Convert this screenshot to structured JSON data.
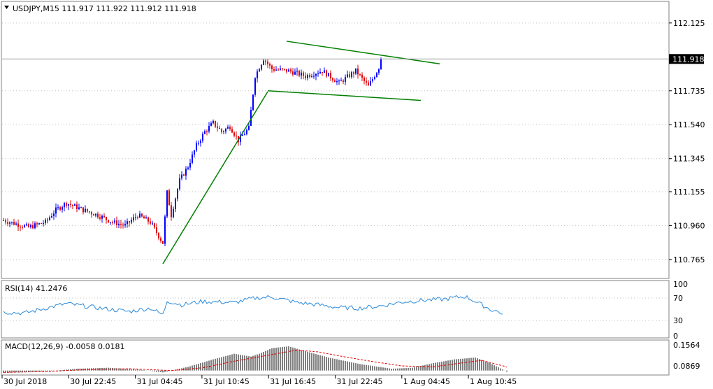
{
  "colors": {
    "bull": "#0000ff",
    "bear": "#e00000",
    "trend": "#008000",
    "rsi": "#2b8ad8",
    "macd_hist": "#000000",
    "macd_signal": "#e00000",
    "current_price_bg": "#000000",
    "current_price_text": "#ffffff"
  },
  "main_chart": {
    "header": "USDJPY,M15  111.917 111.922 111.912 111.918",
    "chart_data": {
      "type": "candlestick",
      "symbol": "USDJPY",
      "timeframe": "M15",
      "ohlc": {
        "open": 111.917,
        "high": 111.922,
        "low": 111.912,
        "close": 111.918
      },
      "current_price": 111.918,
      "current_price_label": "111.918",
      "ylim": [
        110.66,
        112.245
      ],
      "y_ticks": [
        "112.125",
        "111.735",
        "111.540",
        "111.345",
        "111.155",
        "110.960",
        "110.765"
      ],
      "y_tick_values": [
        112.125,
        111.735,
        111.54,
        111.345,
        111.155,
        110.96,
        110.765
      ],
      "x_tick_labels": [
        "30 Jul 2018",
        "30 Jul 22:45",
        "31 Jul 04:45",
        "31 Jul 10:45",
        "31 Jul 16:45",
        "31 Jul 22:45",
        "1 Aug 04:45",
        "1 Aug 10:45"
      ],
      "bar_count": 180,
      "anchor_closes": [
        [
          0,
          110.99
        ],
        [
          12,
          110.95
        ],
        [
          20,
          110.98
        ],
        [
          25,
          111.05
        ],
        [
          30,
          111.09
        ],
        [
          38,
          111.05
        ],
        [
          45,
          111.02
        ],
        [
          52,
          110.98
        ],
        [
          58,
          110.96
        ],
        [
          64,
          111.02
        ],
        [
          70,
          110.98
        ],
        [
          76,
          110.86
        ],
        [
          78,
          111.15
        ],
        [
          80,
          111.02
        ],
        [
          84,
          111.22
        ],
        [
          88,
          111.3
        ],
        [
          92,
          111.42
        ],
        [
          96,
          111.5
        ],
        [
          100,
          111.55
        ],
        [
          104,
          111.5
        ],
        [
          108,
          111.53
        ],
        [
          112,
          111.45
        ],
        [
          117,
          111.52
        ],
        [
          120,
          111.82
        ],
        [
          124,
          111.92
        ],
        [
          128,
          111.86
        ],
        [
          136,
          111.85
        ],
        [
          144,
          111.82
        ],
        [
          152,
          111.85
        ],
        [
          160,
          111.78
        ],
        [
          168,
          111.85
        ],
        [
          174,
          111.76
        ],
        [
          180,
          111.89
        ]
      ],
      "trendlines": [
        {
          "name": "impulse-line",
          "points": [
            [
              76,
              110.74
            ],
            [
              126,
              111.73
            ]
          ]
        },
        {
          "name": "flag-upper-line",
          "points": [
            [
              135,
              112.02
            ],
            [
              208,
              111.89
            ]
          ]
        },
        {
          "name": "flag-lower-line",
          "points": [
            [
              126,
              111.735
            ],
            [
              199,
              111.68
            ]
          ]
        }
      ],
      "grid": true
    }
  },
  "rsi_panel": {
    "header": "RSI(14) 41.2476",
    "chart_data": {
      "type": "line",
      "name": "RSI(14)",
      "current_value": 41.2476,
      "ylim": [
        0,
        100
      ],
      "y_ticks": [
        "100",
        "70",
        "30",
        "0"
      ],
      "y_tick_values": [
        100,
        70,
        30,
        0
      ],
      "levels": [
        70,
        30
      ],
      "anchor_values": [
        [
          0,
          45
        ],
        [
          10,
          43
        ],
        [
          20,
          52
        ],
        [
          30,
          60
        ],
        [
          40,
          55
        ],
        [
          50,
          50
        ],
        [
          60,
          46
        ],
        [
          70,
          52
        ],
        [
          76,
          40
        ],
        [
          78,
          65
        ],
        [
          85,
          58
        ],
        [
          95,
          64
        ],
        [
          110,
          62
        ],
        [
          120,
          70
        ],
        [
          128,
          72
        ],
        [
          140,
          62
        ],
        [
          150,
          58
        ],
        [
          160,
          53
        ],
        [
          170,
          52
        ],
        [
          180,
          56
        ],
        [
          190,
          63
        ],
        [
          200,
          66
        ],
        [
          210,
          68
        ],
        [
          220,
          73
        ],
        [
          225,
          64
        ],
        [
          232,
          50
        ],
        [
          238,
          43
        ]
      ]
    }
  },
  "macd_panel": {
    "header": "MACD(12,26,9) -0.0058 0.0181",
    "chart_data": {
      "type": "bar",
      "name": "MACD(12,26,9)",
      "main_value": -0.0058,
      "signal_value": 0.0181,
      "ylim": [
        -0.02,
        0.16
      ],
      "y_ticks": [
        "0.1564",
        "0.0869"
      ],
      "y_tick_values": [
        0.1564,
        0.0869
      ],
      "anchor_macd": [
        [
          0,
          -0.012
        ],
        [
          20,
          -0.005
        ],
        [
          35,
          0.01
        ],
        [
          50,
          0.015
        ],
        [
          65,
          0.005
        ],
        [
          76,
          -0.01
        ],
        [
          88,
          0.02
        ],
        [
          100,
          0.06
        ],
        [
          110,
          0.09
        ],
        [
          118,
          0.075
        ],
        [
          122,
          0.09
        ],
        [
          128,
          0.12
        ],
        [
          136,
          0.13
        ],
        [
          142,
          0.11
        ],
        [
          155,
          0.07
        ],
        [
          170,
          0.035
        ],
        [
          185,
          0.01
        ],
        [
          195,
          0.015
        ],
        [
          205,
          0.04
        ],
        [
          215,
          0.06
        ],
        [
          225,
          0.07
        ],
        [
          232,
          0.04
        ],
        [
          240,
          -0.005
        ]
      ],
      "anchor_signal": [
        [
          0,
          -0.01
        ],
        [
          20,
          -0.005
        ],
        [
          40,
          0.005
        ],
        [
          60,
          0.01
        ],
        [
          80,
          0.0
        ],
        [
          95,
          0.015
        ],
        [
          110,
          0.05
        ],
        [
          120,
          0.07
        ],
        [
          130,
          0.09
        ],
        [
          140,
          0.11
        ],
        [
          150,
          0.1
        ],
        [
          162,
          0.075
        ],
        [
          175,
          0.05
        ],
        [
          190,
          0.025
        ],
        [
          205,
          0.02
        ],
        [
          218,
          0.04
        ],
        [
          228,
          0.055
        ],
        [
          240,
          0.02
        ]
      ]
    }
  }
}
